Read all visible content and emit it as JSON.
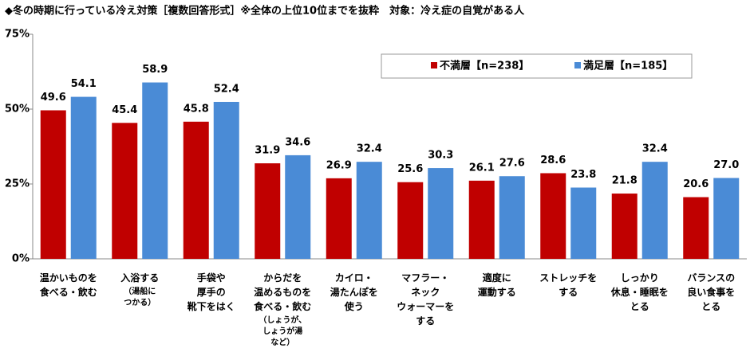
{
  "chart_data": {
    "type": "bar",
    "title": "◆冬の時期に行っている冷え対策［複数回答形式］※全体の上位10位までを抜粋　対象：冷え症の自覚がある人",
    "categories": [
      "温かいものを\n食べる・飲む",
      "入浴する",
      "手袋や\n厚手の\n靴下をはく",
      "からだを\n温めるものを\n食べる・飲む",
      "カイロ・\n湯たんぽを\n使う",
      "マフラー・\nネック\nウォーマーを\nする",
      "適度に\n運動する",
      "ストレッチを\nする",
      "しっかり\n休息・睡眠を\nとる",
      "バランスの\n良い食事を\nとる"
    ],
    "category_notes": [
      null,
      "（湯船に\nつかる）",
      null,
      "（しょうが、\nしょうが湯\nなど）",
      null,
      null,
      null,
      null,
      null,
      null
    ],
    "series": [
      {
        "name": "不満層【n=238】",
        "color": "#c00000",
        "values": [
          49.6,
          45.4,
          45.8,
          31.9,
          26.9,
          25.6,
          26.1,
          28.6,
          21.8,
          20.6
        ],
        "value_labels": [
          "49.6",
          "45.4",
          "45.8",
          "31.9",
          "26.9",
          "25.6",
          "26.1",
          "28.6",
          "21.8",
          "20.6"
        ]
      },
      {
        "name": "満足層【n=185】",
        "color": "#4a8bd6",
        "values": [
          54.1,
          58.9,
          52.4,
          34.6,
          32.4,
          30.3,
          27.6,
          23.8,
          32.4,
          27.0
        ],
        "value_labels": [
          "54.1",
          "58.9",
          "52.4",
          "34.6",
          "32.4",
          "30.3",
          "27.6",
          "23.8",
          "32.4",
          "27.0"
        ]
      }
    ],
    "ylim": [
      0,
      75
    ],
    "yticks": [
      {
        "value": 0,
        "label": "0%"
      },
      {
        "value": 25,
        "label": "25%"
      },
      {
        "value": 50,
        "label": "50%"
      },
      {
        "value": 75,
        "label": "75%"
      }
    ],
    "grid": false
  }
}
